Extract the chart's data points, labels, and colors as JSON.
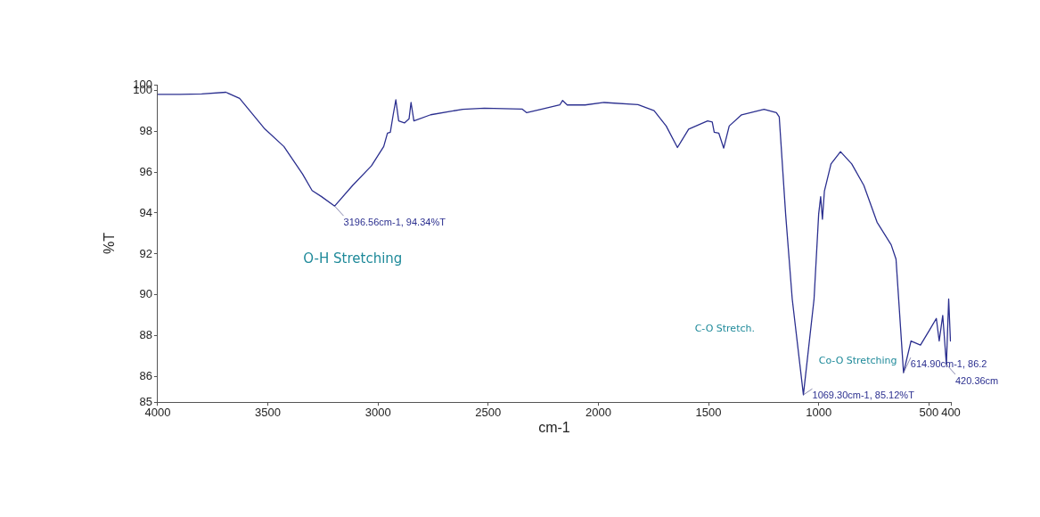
{
  "chart_data": {
    "type": "line",
    "xlabel": "cm-1",
    "ylabel": "%T",
    "xlim": [
      4000,
      400
    ],
    "xticks": [
      4000,
      3500,
      3000,
      2500,
      2000,
      1500,
      1000,
      500,
      400
    ],
    "ylim": [
      84.76,
      100.27
    ],
    "yticks": [
      {
        "value": 84.76,
        "label": "85"
      },
      86,
      88,
      90,
      92,
      94,
      96,
      98,
      100,
      {
        "value": 100.27,
        "label": "100"
      }
    ],
    "grid": false,
    "legend": false,
    "marker": "none",
    "line_style": "solid",
    "series": [
      {
        "color": "#2b2f8f",
        "x": [
          4000,
          3900,
          3800,
          3690,
          3628,
          3513,
          3427,
          3342,
          3299,
          3256,
          3196.56,
          3115,
          3030,
          2974,
          2957,
          2944,
          2931,
          2919,
          2906,
          2880,
          2859,
          2850,
          2837,
          2761,
          2615,
          2517,
          2346,
          2325,
          2260,
          2175,
          2162,
          2141,
          2060,
          1974,
          1820,
          1747,
          1692,
          1641,
          1590,
          1504,
          1483,
          1474,
          1453,
          1431,
          1406,
          1350,
          1248,
          1192,
          1179,
          1150,
          1120,
          1069.3,
          1021,
          1000,
          991,
          983,
          974,
          944,
          901,
          850,
          795,
          735,
          671,
          649,
          614.9,
          581,
          538,
          496,
          466,
          453,
          437,
          420.36,
          410,
          402
        ],
        "values": [
          99.8,
          99.8,
          99.82,
          99.9,
          99.6,
          98.1,
          97.25,
          95.9,
          95.1,
          94.8,
          94.34,
          95.35,
          96.3,
          97.25,
          97.9,
          97.95,
          98.8,
          99.53,
          98.5,
          98.4,
          98.6,
          99.4,
          98.5,
          98.8,
          99.07,
          99.12,
          99.08,
          98.9,
          99.07,
          99.28,
          99.5,
          99.28,
          99.28,
          99.4,
          99.3,
          99.0,
          98.25,
          97.2,
          98.1,
          98.5,
          98.45,
          97.95,
          97.9,
          97.17,
          98.25,
          98.8,
          99.07,
          98.9,
          98.7,
          93.95,
          89.8,
          85.12,
          89.8,
          93.95,
          94.8,
          93.7,
          95.07,
          96.4,
          97.0,
          96.4,
          95.35,
          93.55,
          92.45,
          91.75,
          86.2,
          87.75,
          87.55,
          88.3,
          88.85,
          87.75,
          89.0,
          86.6,
          89.8,
          87.75
        ]
      }
    ],
    "annotations": [
      {
        "text": "3196.56cm-1, 94.34%T",
        "x": 3196.56,
        "y": 94.34
      },
      "O-H Stretching",
      "C-O Stretch.",
      {
        "text": "1069.30cm-1, 85.12%T",
        "x": 1069.3,
        "y": 85.12
      },
      "Co-O Stretching",
      {
        "text": "614.90cm-1, 86.2",
        "x": 614.9,
        "y": 86.2
      },
      {
        "text": "420.36cm",
        "x": 420.36,
        "y": 86.6
      }
    ]
  }
}
